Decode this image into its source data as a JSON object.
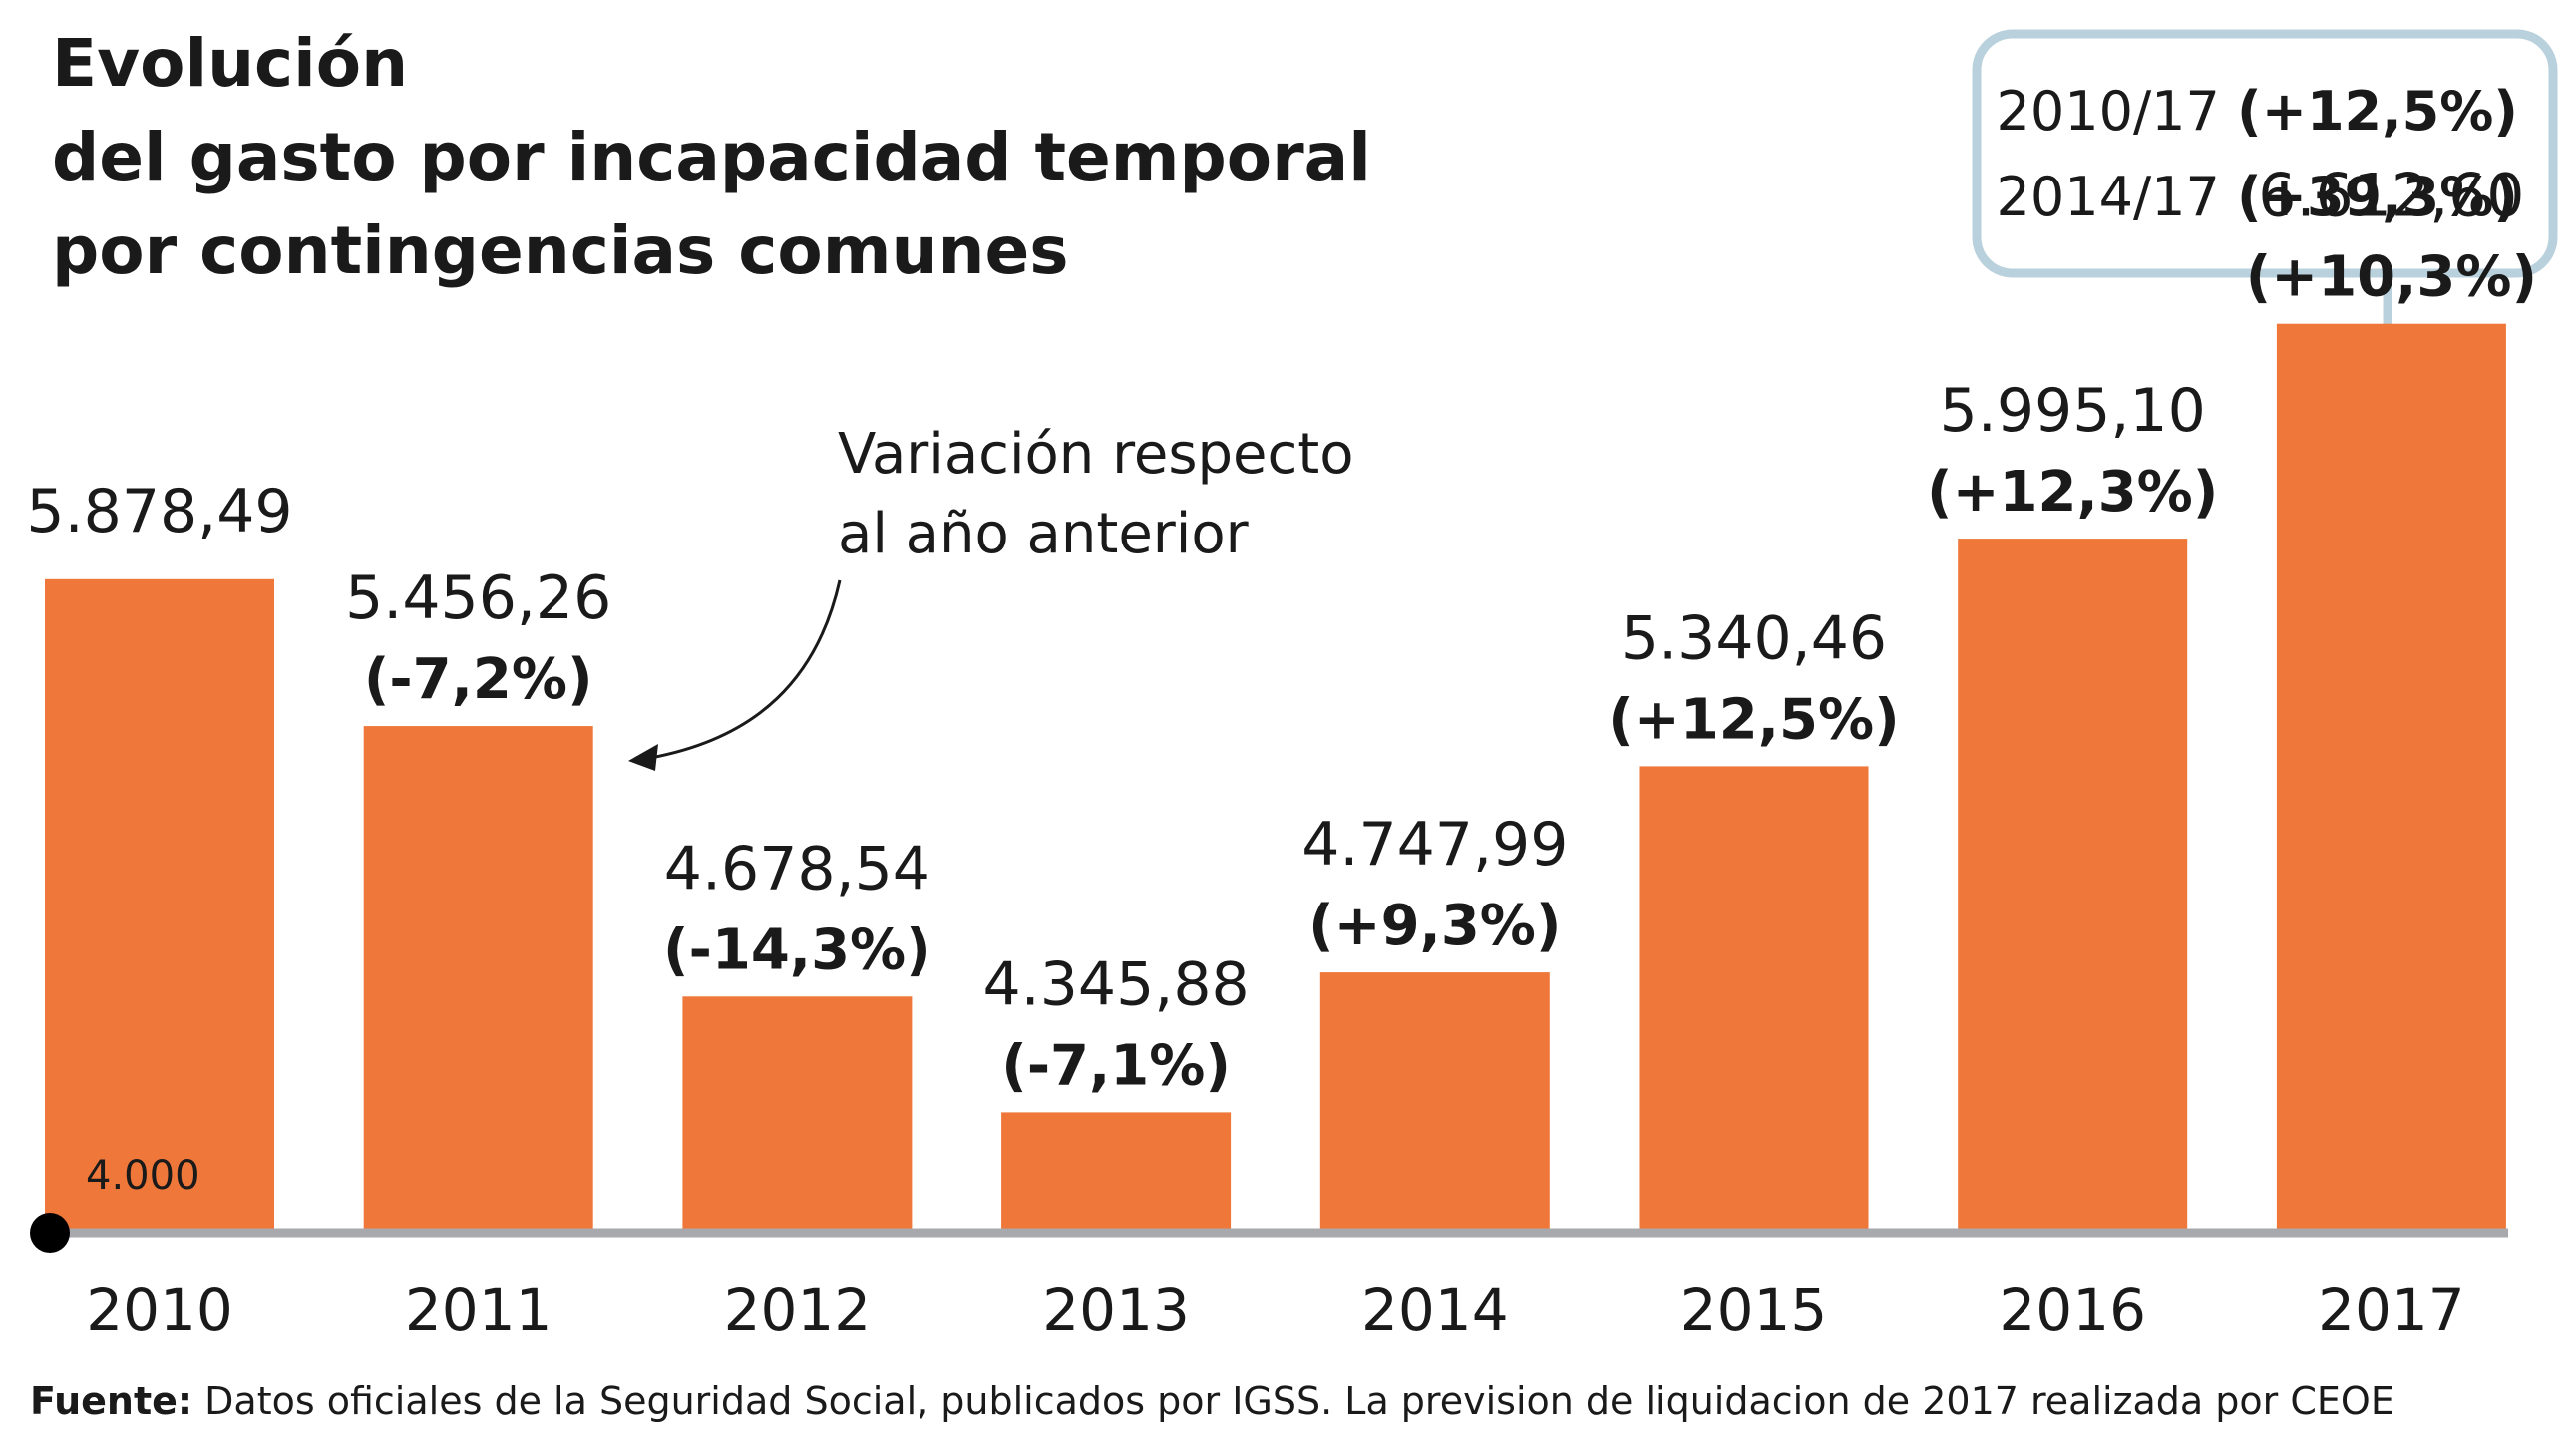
{
  "title_lines": [
    "Evolución",
    "del gasto por incapacidad temporal",
    "por contingencias comunes"
  ],
  "summary_box": {
    "rows": [
      {
        "period": "2010/17",
        "change": "(+12,5%)"
      },
      {
        "period": "2014/17",
        "change": "(+39,3%)"
      }
    ]
  },
  "annotation": {
    "lines": [
      "Variación respecto",
      "al año anterior"
    ]
  },
  "source": {
    "label": "Fuente:",
    "text": " Datos oficiales de la Seguridad Social, publicados por IGSS. La prevision de liquidacion de 2017  realizada por CEOE"
  },
  "colors": {
    "bar": "#ef773a",
    "axis": "#a7a9ac",
    "box_border": "#b9d1dc",
    "text": "#1a1a1a"
  },
  "chart_data": {
    "type": "bar",
    "categories": [
      "2010",
      "2011",
      "2012",
      "2013",
      "2014",
      "2015",
      "2016",
      "2017"
    ],
    "values": [
      5878.49,
      5456.26,
      4678.54,
      4345.88,
      4747.99,
      5340.46,
      5995.1,
      6612.6
    ],
    "value_labels": [
      "5.878,49",
      "5.456,26",
      "4.678,54",
      "4.345,88",
      "4.747,99",
      "5.340,46",
      "5.995,10",
      "6.612,60"
    ],
    "change_labels": [
      "",
      "(-7,2%)",
      "(-14,3%)",
      "(-7,1%)",
      "(+9,3%)",
      "(+12,5%)",
      "(+12,3%)",
      "(+10,3%)"
    ],
    "baseline": 4000,
    "baseline_label": "4.000",
    "ylim": [
      4000,
      6800
    ],
    "grid": false,
    "legend": "none"
  }
}
